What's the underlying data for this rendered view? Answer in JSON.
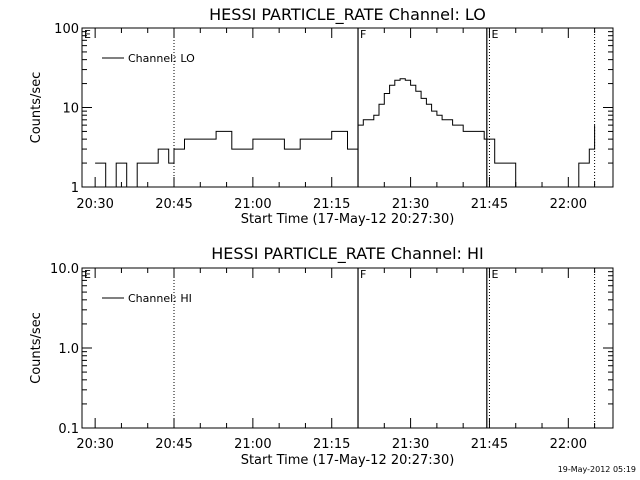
{
  "footer_stamp": "19-May-2012 05:19",
  "chart_data": [
    {
      "type": "line",
      "title": "HESSI PARTICLE_RATE Channel: LO",
      "xlabel": "Start Time (17-May-12 20:27:30)",
      "ylabel": "Counts/sec",
      "yscale": "log",
      "ylim": [
        1,
        100
      ],
      "y_ticks": [
        {
          "v": 1,
          "label": "1"
        },
        {
          "v": 10,
          "label": "10"
        },
        {
          "v": 100,
          "label": "100"
        }
      ],
      "x_range": [
        "20:27:30",
        "22:08:30"
      ],
      "x_ticks": [
        "20:30",
        "20:45",
        "21:00",
        "21:15",
        "21:30",
        "21:45",
        "22:00"
      ],
      "legend": "Channel: LO",
      "legend_position": "top-left",
      "markers": [
        {
          "label": "E",
          "time": "20:27:30",
          "style": "none"
        },
        {
          "label": "",
          "time": "20:45:00",
          "style": "dotted"
        },
        {
          "label": "F",
          "time": "21:20:00",
          "style": "solid"
        },
        {
          "label": "",
          "time": "21:44:30",
          "style": "solid"
        },
        {
          "label": "E",
          "time": "21:45:00",
          "style": "dotted"
        },
        {
          "label": "",
          "time": "22:05:00",
          "style": "dotted"
        }
      ],
      "series": [
        {
          "x": [
            "20:30",
            "20:32",
            "20:34",
            "20:36",
            "20:38",
            "20:40",
            "20:42",
            "20:44",
            "20:45",
            "20:47",
            "20:50",
            "20:53",
            "20:56",
            "21:00",
            "21:03",
            "21:06",
            "21:09",
            "21:12",
            "21:15",
            "21:18",
            "21:20",
            "21:21",
            "21:22",
            "21:23",
            "21:24",
            "21:25",
            "21:26",
            "21:27",
            "21:28",
            "21:29",
            "21:30",
            "21:31",
            "21:32",
            "21:33",
            "21:34",
            "21:35",
            "21:36",
            "21:37",
            "21:38",
            "21:39",
            "21:40",
            "21:42",
            "21:44",
            "21:46",
            "21:48",
            "21:50",
            "21:52",
            "21:54",
            "21:56",
            "21:58",
            "22:00",
            "22:02",
            "22:04",
            "22:05"
          ],
          "y": [
            2,
            1,
            2,
            1,
            2,
            2,
            3,
            2,
            3,
            4,
            4,
            5,
            3,
            4,
            4,
            3,
            4,
            4,
            5,
            3,
            6,
            7,
            7,
            8,
            11,
            15,
            19,
            22,
            23,
            22,
            19,
            16,
            13,
            11,
            9,
            8,
            7,
            7,
            6,
            6,
            5,
            5,
            4,
            2,
            2,
            1,
            1,
            1,
            1,
            1,
            1,
            2,
            3,
            6
          ]
        }
      ]
    },
    {
      "type": "line",
      "title": "HESSI PARTICLE_RATE Channel: HI",
      "xlabel": "Start Time (17-May-12 20:27:30)",
      "ylabel": "Counts/sec",
      "yscale": "log",
      "ylim": [
        0.1,
        10
      ],
      "y_ticks": [
        {
          "v": 0.1,
          "label": "0.1"
        },
        {
          "v": 1,
          "label": "1.0"
        },
        {
          "v": 10,
          "label": "10.0"
        }
      ],
      "x_range": [
        "20:27:30",
        "22:08:30"
      ],
      "x_ticks": [
        "20:30",
        "20:45",
        "21:00",
        "21:15",
        "21:30",
        "21:45",
        "22:00"
      ],
      "legend": "Channel: HI",
      "legend_position": "top-left",
      "markers": [
        {
          "label": "E",
          "time": "20:27:30",
          "style": "none"
        },
        {
          "label": "",
          "time": "20:45:00",
          "style": "dotted"
        },
        {
          "label": "F",
          "time": "21:20:00",
          "style": "solid"
        },
        {
          "label": "",
          "time": "21:44:30",
          "style": "solid"
        },
        {
          "label": "E",
          "time": "21:45:00",
          "style": "dotted"
        },
        {
          "label": "",
          "time": "22:05:00",
          "style": "dotted"
        }
      ],
      "series": [
        {
          "x": [],
          "y": []
        }
      ]
    }
  ]
}
